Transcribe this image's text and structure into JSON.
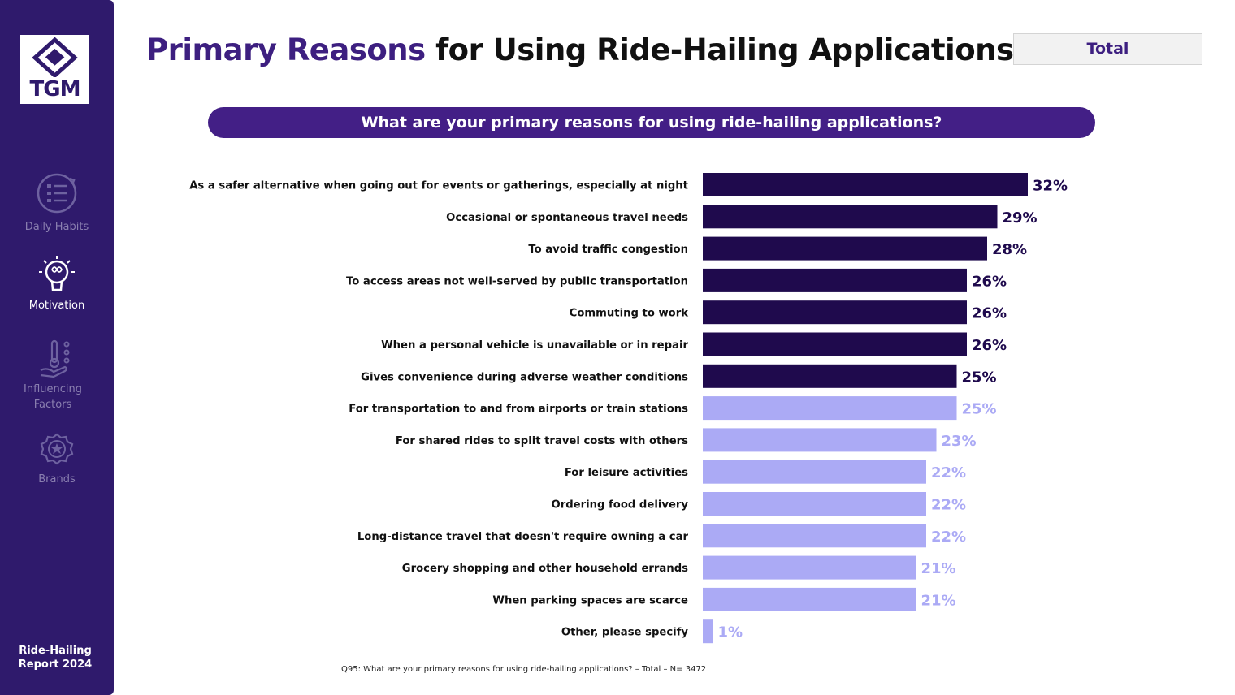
{
  "brand": {
    "logo_text": "TGM"
  },
  "sidebar": {
    "items": [
      {
        "label": "Daily Habits",
        "icon": "daily-habits-icon",
        "active": false
      },
      {
        "label": "Motivation",
        "icon": "lightbulb-icon",
        "active": true
      },
      {
        "label": "Influencing Factors",
        "icon": "influencing-factors-icon",
        "active": false
      },
      {
        "label": "Brands",
        "icon": "brands-icon",
        "active": false
      }
    ],
    "footer": "Ride-Hailing Report 2024"
  },
  "header": {
    "title_accent": "Primary Reasons",
    "title_rest": " for Using Ride-Hailing Applications",
    "filter_label": "Total"
  },
  "question_banner": "What are your primary reasons for using ride-hailing applications?",
  "source_note": "Q95: What are your primary reasons for using ride-hailing applications?  – Total – N= 3472",
  "colors": {
    "sidebar": "#2f1a6c",
    "accent": "#3d1f80",
    "bar_top": "#1f0a4d",
    "bar_rest": "#abaaf5",
    "label_top": "#1f0a4d",
    "label_rest": "#abaaf5"
  },
  "chart_data": {
    "type": "bar",
    "orientation": "horizontal",
    "highlight_top_n": 7,
    "value_suffix": "%",
    "xlim": [
      0,
      32
    ],
    "grid": false,
    "categories": [
      "As a safer alternative when going out for events or gatherings, especially at night",
      "Occasional or spontaneous travel needs",
      "To avoid traffic congestion",
      "To access areas not well-served by public transportation",
      "Commuting to work",
      "When a personal vehicle is unavailable or in repair",
      "Gives convenience during adverse weather conditions",
      "For transportation to and from airports or train stations",
      "For shared rides to split travel costs with others",
      "For leisure activities",
      "Ordering food delivery",
      "Long-distance travel that doesn't require owning a car",
      "Grocery shopping and other household errands",
      "When parking spaces are scarce",
      "Other, please specify"
    ],
    "values": [
      32,
      29,
      28,
      26,
      26,
      26,
      25,
      25,
      23,
      22,
      22,
      22,
      21,
      21,
      1
    ]
  }
}
